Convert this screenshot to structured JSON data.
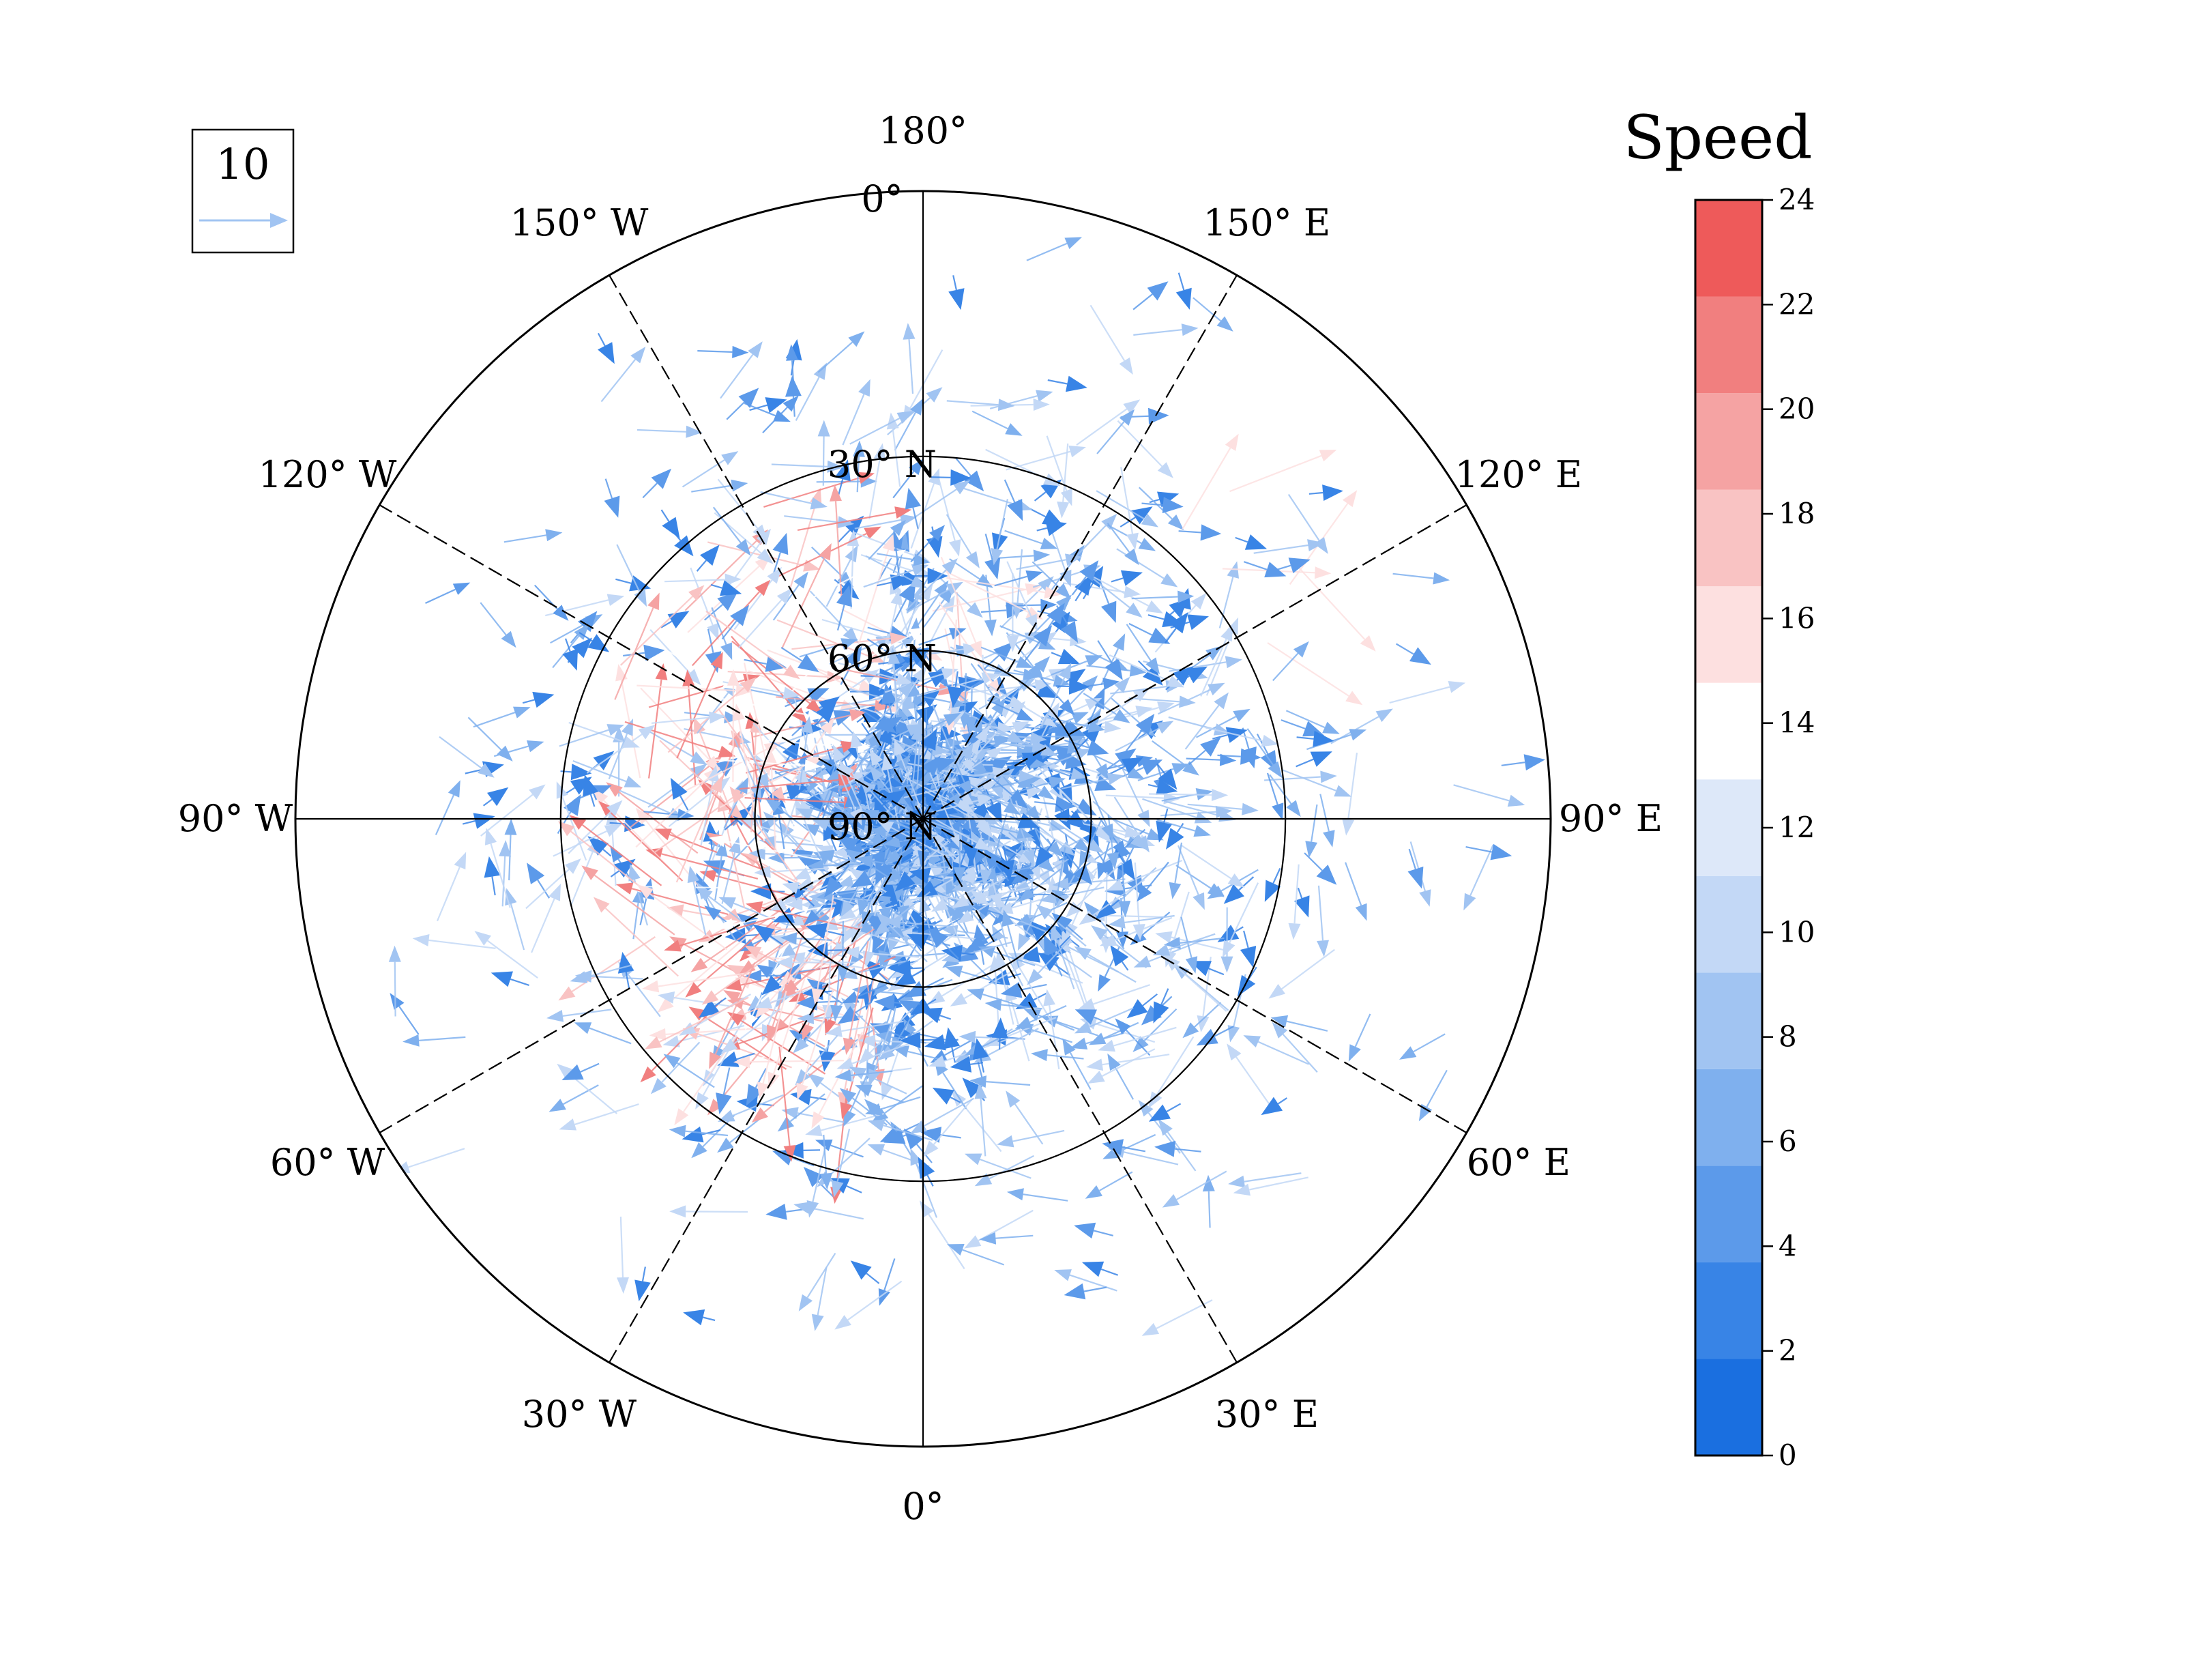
{
  "chart_data": {
    "type": "polar_vector_field",
    "projection": "north-polar-stereographic",
    "title": "",
    "field": "wind vectors (quiver)",
    "longitude_labels": [
      "180°",
      "150° E",
      "120° E",
      "90° E",
      "60° E",
      "30° E",
      "0°",
      "30° W",
      "60° W",
      "90° W",
      "120° W",
      "150° W"
    ],
    "longitude_values": [
      180,
      150,
      120,
      90,
      60,
      30,
      0,
      -30,
      -60,
      -90,
      -120,
      -150
    ],
    "latitude_labels": [
      "0°",
      "30° N",
      "60° N",
      "90° N"
    ],
    "latitude_values": [
      0,
      30,
      60,
      90
    ],
    "lat_range": [
      0,
      90
    ],
    "reference_vector": {
      "label": "10",
      "value": 10
    },
    "colorbar": {
      "title": "Speed",
      "ticks": [
        0,
        2,
        4,
        6,
        8,
        10,
        12,
        14,
        16,
        18,
        20,
        22,
        24
      ],
      "tick_labels": [
        "0",
        "2",
        "4",
        "6",
        "8",
        "10",
        "12",
        "14",
        "16",
        "18",
        "20",
        "22",
        "24"
      ],
      "range": [
        0,
        24
      ],
      "colors": [
        "#1a6fe0",
        "#3884e6",
        "#5c9aea",
        "#7fb0ee",
        "#a1c4f2",
        "#c3d8f6",
        "#dde8f9",
        "#ffffff",
        "#fde0e0",
        "#f9c3c3",
        "#f5a3a3",
        "#f17f7f",
        "#ee5a5a"
      ]
    },
    "vector_summary": {
      "note": "quiver arrows, colored by speed; strongest (red, 14-22) streaks along ~30-60° N between 90° W and 180°",
      "high_speed_regions": [
        {
          "lon_range": [
            -160,
            -100
          ],
          "lat_range": [
            30,
            60
          ],
          "speed_range": [
            14,
            22
          ]
        },
        {
          "lon_range": [
            -100,
            -10
          ],
          "lat_range": [
            40,
            70
          ],
          "speed_range": [
            14,
            22
          ]
        },
        {
          "lon_range": [
            170,
            180
          ],
          "lat_range": [
            35,
            60
          ],
          "speed_range": [
            14,
            18
          ]
        },
        {
          "lon_range": [
            110,
            140
          ],
          "lat_range": [
            15,
            30
          ],
          "speed_range": [
            14,
            16
          ]
        }
      ]
    }
  }
}
